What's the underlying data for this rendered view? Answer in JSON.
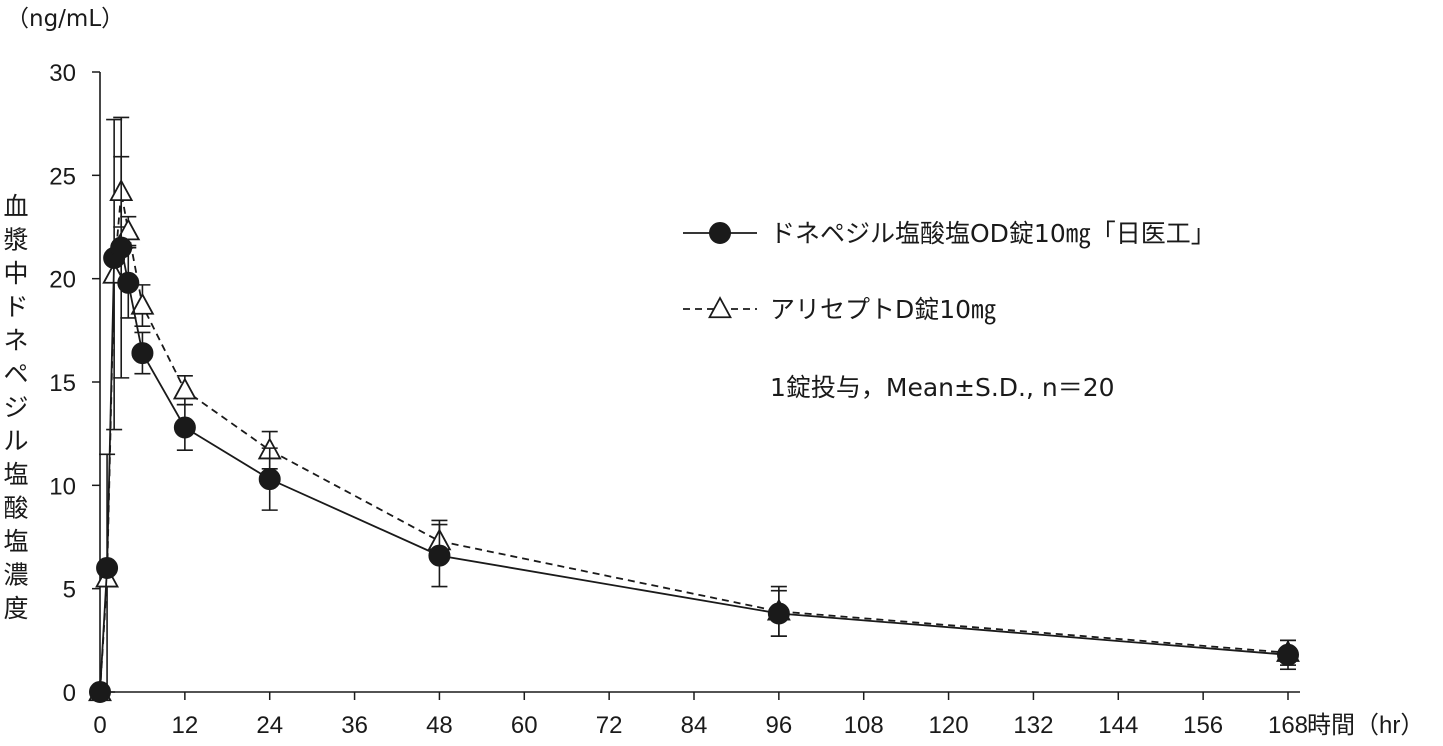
{
  "chart_data": {
    "type": "line",
    "y_unit": "（ng/mL）",
    "ylabel": "血漿中ドネペジル塩酸塩濃度",
    "xlabel": "時間（hr）",
    "ylim": [
      0,
      30
    ],
    "yticks": [
      0,
      5,
      10,
      15,
      20,
      25,
      30
    ],
    "xlim": [
      0,
      168
    ],
    "xticks": [
      0,
      12,
      24,
      36,
      48,
      60,
      72,
      84,
      96,
      108,
      120,
      132,
      144,
      156,
      168
    ],
    "legend_position": "top-right",
    "note": "1錠投与，Mean±S.D., n＝20",
    "series": [
      {
        "name": "ドネペジル塩酸塩OD錠10㎎「日医工」",
        "line": "solid",
        "marker": "filled-circle",
        "x": [
          0,
          1,
          2,
          3,
          4,
          6,
          12,
          24,
          48,
          96,
          168
        ],
        "y": [
          0,
          6.0,
          21.0,
          21.5,
          19.8,
          16.4,
          12.8,
          10.3,
          6.6,
          3.8,
          1.8
        ],
        "sd": [
          0,
          0,
          0,
          6.3,
          1.7,
          1.0,
          1.1,
          1.5,
          1.5,
          1.1,
          0.7
        ]
      },
      {
        "name": "アリセプトD錠10㎎",
        "line": "dashed",
        "marker": "open-triangle",
        "x": [
          0,
          1,
          2,
          3,
          4,
          6,
          12,
          24,
          48,
          96,
          168
        ],
        "y": [
          0,
          5.5,
          20.2,
          24.2,
          22.3,
          18.7,
          14.6,
          11.7,
          7.3,
          3.9,
          1.9
        ],
        "sd": [
          0,
          6.0,
          7.5,
          1.7,
          0.7,
          1.0,
          0.7,
          0.9,
          1.0,
          1.2,
          0.6
        ]
      }
    ]
  }
}
